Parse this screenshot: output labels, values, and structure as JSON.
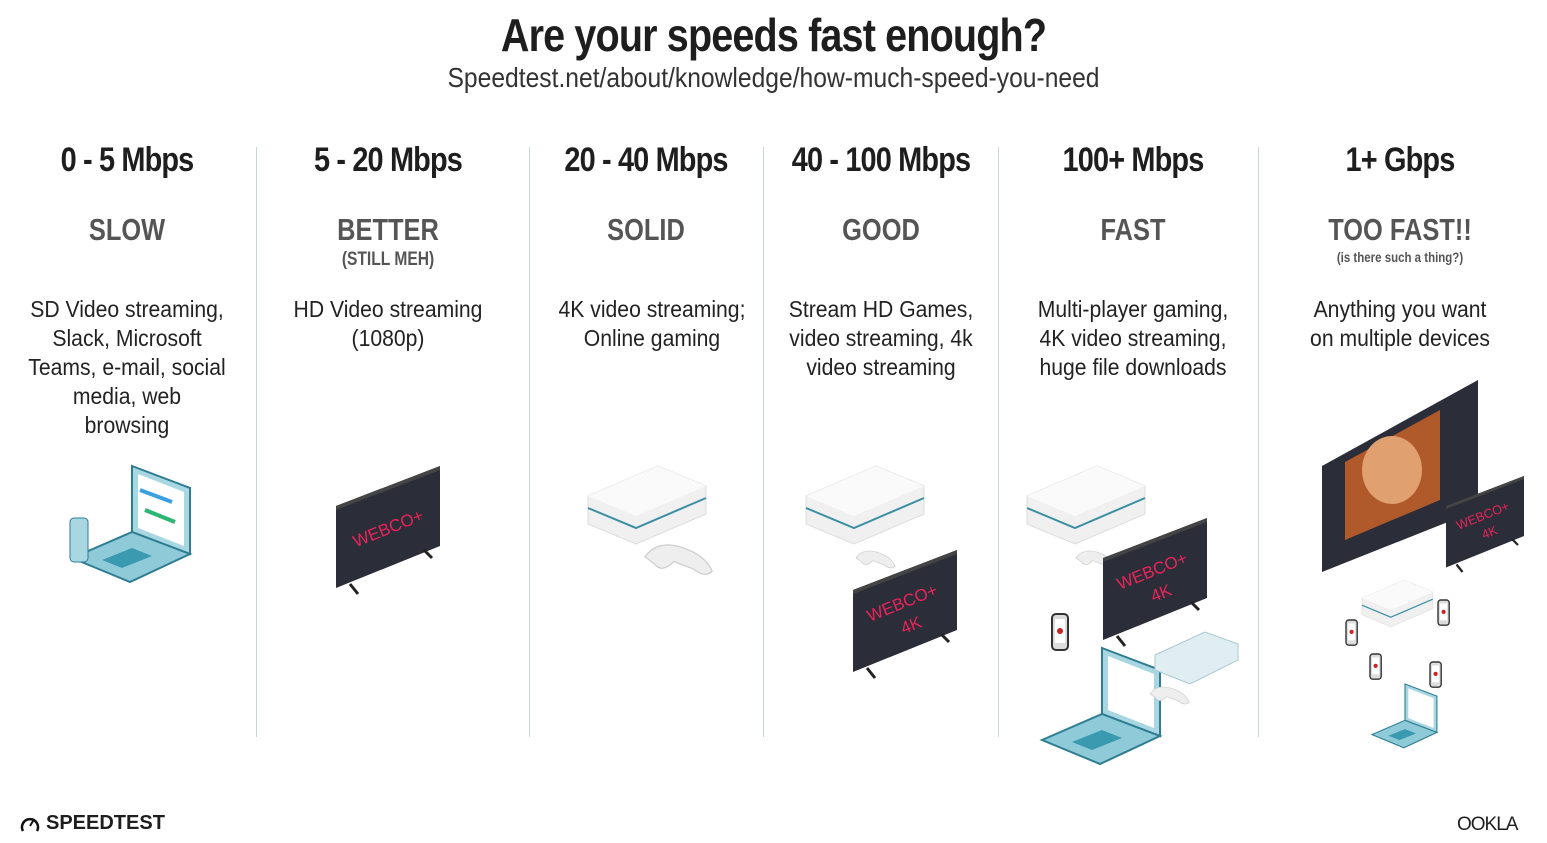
{
  "header": {
    "title": "Are your speeds fast enough?",
    "subtitle": "Speedtest.net/about/knowledge/how-much-speed-you-need"
  },
  "tiers": [
    {
      "speed": "0 - 5 Mbps",
      "level": "SLOW",
      "note": "",
      "description": "SD Video streaming, Slack, Microsoft Teams, e-mail, social media, web browsing",
      "devices": [
        "laptop-icon",
        "phone-icon"
      ]
    },
    {
      "speed": "5 - 20 Mbps",
      "level": "BETTER",
      "note": "(STILL MEH)",
      "description": "HD Video streaming (1080p)",
      "devices": [
        "tv-icon"
      ]
    },
    {
      "speed": "20 - 40 Mbps",
      "level": "SOLID",
      "note": "",
      "description": "4K video streaming; Online gaming",
      "devices": [
        "game-console-icon",
        "controller-icon"
      ]
    },
    {
      "speed": "40 - 100 Mbps",
      "level": "GOOD",
      "note": "",
      "description": "Stream HD Games, video streaming, 4k video streaming",
      "devices": [
        "game-console-icon",
        "controller-icon",
        "tv-4k-icon"
      ]
    },
    {
      "speed": "100+ Mbps",
      "level": "FAST",
      "note": "",
      "description": "Multi-player gaming, 4K video streaming, huge file downloads",
      "devices": [
        "game-console-icon",
        "tv-4k-icon",
        "phone-icon",
        "laptop-icon",
        "game-console-icon"
      ]
    },
    {
      "speed": "1+ Gbps",
      "level": "TOO FAST!!",
      "note": "(is there such a thing?)",
      "description": "Anything you want on multiple devices",
      "devices": [
        "large-tv-icon",
        "tv-4k-icon",
        "game-console-icon",
        "phone-icon",
        "laptop-icon"
      ]
    }
  ],
  "tv_logo": "WEBCO+",
  "tv_4k": "4K",
  "footer": {
    "left_brand": "SPEEDTEST",
    "right_brand": "OOKLA"
  },
  "colors": {
    "tv": "#2b2d38",
    "tv_text": "#e8245a",
    "teal": "#7fc1d0",
    "console": "#f2f2f2"
  }
}
